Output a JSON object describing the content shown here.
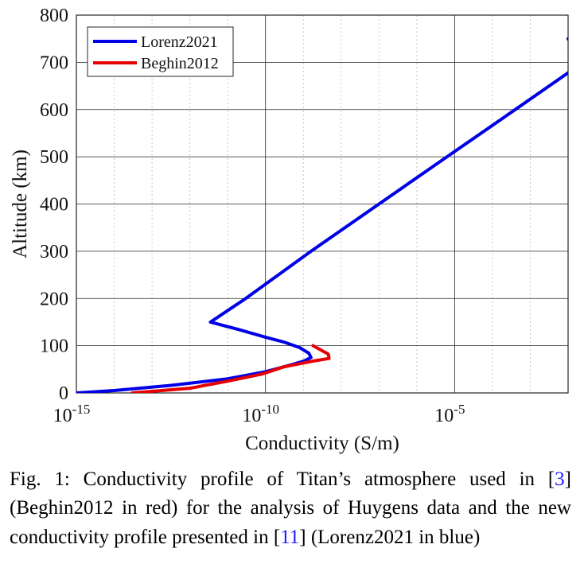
{
  "chart_data": {
    "type": "line",
    "title": "",
    "xlabel": "Conductivity (S/m)",
    "ylabel": "Altitude (km)",
    "xscale": "log",
    "xlim": [
      1e-15,
      0.01
    ],
    "ylim": [
      0,
      800
    ],
    "grid": true,
    "legend_position": "top-left",
    "x_ticks": [
      {
        "value": 1e-15,
        "base": "10",
        "exp": "-15"
      },
      {
        "value": 1e-10,
        "base": "10",
        "exp": "-10"
      },
      {
        "value": 1e-05,
        "base": "10",
        "exp": "-5"
      }
    ],
    "y_ticks": [
      {
        "value": 0,
        "label": "0"
      },
      {
        "value": 100,
        "label": "100"
      },
      {
        "value": 200,
        "label": "200"
      },
      {
        "value": 300,
        "label": "300"
      },
      {
        "value": 400,
        "label": "400"
      },
      {
        "value": 500,
        "label": "500"
      },
      {
        "value": 600,
        "label": "600"
      },
      {
        "value": 700,
        "label": "700"
      },
      {
        "value": 800,
        "label": "800"
      }
    ],
    "series": [
      {
        "name": "Lorenz2021",
        "color": "#0000e6",
        "points": [
          [
            1e-15,
            0
          ],
          [
            1e-14,
            5
          ],
          [
            3.2e-13,
            16
          ],
          [
            1e-11,
            30
          ],
          [
            1e-10,
            45
          ],
          [
            5e-10,
            60
          ],
          [
            1e-09,
            67
          ],
          [
            1.6e-09,
            75
          ],
          [
            1.4e-09,
            84
          ],
          [
            8e-10,
            96
          ],
          [
            3e-10,
            108
          ],
          [
            1e-10,
            118
          ],
          [
            2e-11,
            134
          ],
          [
            3.5e-12,
            150
          ],
          [
            3e-11,
            200
          ],
          [
            1.6e-09,
            300
          ],
          [
            1e-07,
            400
          ],
          [
            6.3e-06,
            500
          ],
          [
            0.0004,
            600
          ],
          [
            0.025,
            700
          ],
          [
            0.01,
            750
          ]
        ]
      },
      {
        "name": "Beghin2012",
        "color": "#e60000",
        "points": [
          [
            3e-14,
            0
          ],
          [
            1e-12,
            10
          ],
          [
            1e-11,
            25
          ],
          [
            8e-11,
            40
          ],
          [
            3e-10,
            55
          ],
          [
            2e-09,
            68
          ],
          [
            4.8e-09,
            73
          ],
          [
            4.6e-09,
            82
          ],
          [
            2.6e-09,
            93
          ],
          [
            1.8e-09,
            100
          ]
        ]
      }
    ]
  },
  "caption": {
    "prefix": "Fig. 1: Conductivity profile of Titan’s atmosphere used in [",
    "ref1": "3",
    "middle": "] (Beghin2012 in red) for the analysis of Huygens data and the new conductivity profile presented in [",
    "ref2": "11",
    "suffix": "] (Lorenz2021 in blue)"
  }
}
